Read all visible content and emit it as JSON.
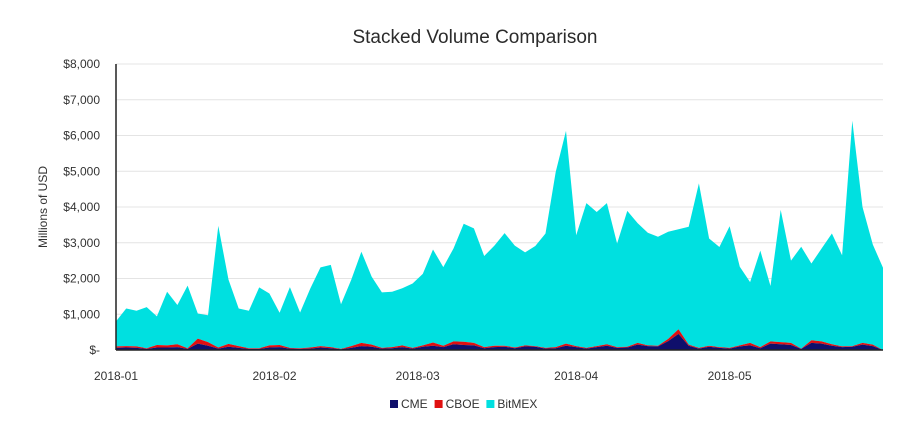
{
  "chart_data": {
    "type": "area",
    "stacked": true,
    "title": "Stacked Volume Comparison",
    "xlabel": "",
    "ylabel": "Millions of USD",
    "ylim": [
      0,
      8000
    ],
    "y_ticks": [
      0,
      1000,
      2000,
      3000,
      4000,
      5000,
      6000,
      7000,
      8000
    ],
    "y_tick_labels": [
      "$-",
      "$1,000",
      "$2,000",
      "$3,000",
      "$4,000",
      "$5,000",
      "$6,000",
      "$7,000",
      "$8,000"
    ],
    "x_tick_labels": [
      "2018-01",
      "2018-02",
      "2018-03",
      "2018-04",
      "2018-05"
    ],
    "x_tick_day_index": [
      0,
      31,
      59,
      90,
      120
    ],
    "x_range_days": [
      0,
      150
    ],
    "grid": true,
    "legend_position": "bottom",
    "x_day_index": [
      0,
      2,
      4,
      6,
      8,
      10,
      12,
      14,
      16,
      18,
      20,
      22,
      24,
      26,
      28,
      30,
      32,
      34,
      36,
      38,
      40,
      42,
      44,
      46,
      48,
      50,
      52,
      54,
      56,
      58,
      60,
      62,
      64,
      66,
      68,
      70,
      72,
      74,
      76,
      78,
      80,
      82,
      84,
      86,
      88,
      90,
      92,
      94,
      96,
      98,
      100,
      102,
      104,
      106,
      108,
      110,
      112,
      114,
      116,
      118,
      120,
      122,
      124,
      126,
      128,
      130,
      132,
      134,
      136,
      138,
      140,
      142,
      144,
      146,
      148,
      150
    ],
    "series": [
      {
        "name": "CME",
        "color": "#0f0f6b",
        "values": [
          60,
          70,
          60,
          30,
          70,
          70,
          80,
          30,
          180,
          120,
          40,
          90,
          60,
          30,
          30,
          70,
          80,
          40,
          30,
          40,
          70,
          50,
          20,
          60,
          110,
          90,
          40,
          50,
          80,
          40,
          90,
          120,
          80,
          160,
          140,
          130,
          50,
          80,
          90,
          50,
          100,
          90,
          40,
          50,
          120,
          80,
          40,
          80,
          120,
          60,
          70,
          150,
          110,
          100,
          250,
          450,
          120,
          40,
          90,
          60,
          40,
          100,
          130,
          50,
          180,
          160,
          140,
          30,
          200,
          180,
          120,
          80,
          90,
          150,
          110,
          0
        ]
      },
      {
        "name": "CBOE",
        "color": "#e01010",
        "values": [
          40,
          40,
          40,
          20,
          70,
          60,
          80,
          20,
          140,
          100,
          30,
          80,
          50,
          20,
          20,
          60,
          60,
          20,
          20,
          30,
          40,
          30,
          10,
          50,
          90,
          60,
          20,
          30,
          50,
          20,
          40,
          90,
          40,
          80,
          90,
          70,
          30,
          40,
          30,
          20,
          30,
          20,
          20,
          30,
          60,
          30,
          20,
          30,
          40,
          20,
          20,
          50,
          20,
          20,
          60,
          130,
          30,
          20,
          30,
          20,
          20,
          30,
          70,
          30,
          60,
          60,
          60,
          10,
          70,
          60,
          40,
          20,
          20,
          50,
          40,
          0
        ]
      },
      {
        "name": "BitMEX",
        "color": "#00e0e0",
        "values": [
          700,
          1050,
          1000,
          1150,
          800,
          1500,
          1100,
          1750,
          700,
          750,
          3400,
          1800,
          1050,
          1050,
          1700,
          1450,
          900,
          1700,
          1000,
          1650,
          2200,
          2300,
          1250,
          1850,
          2550,
          1900,
          1550,
          1550,
          1600,
          1800,
          2000,
          2600,
          2200,
          2600,
          3300,
          3200,
          2550,
          2800,
          3150,
          2850,
          2600,
          2800,
          3200,
          4900,
          5950,
          3100,
          4050,
          3750,
          3950,
          2900,
          3800,
          3350,
          3150,
          3050,
          3000,
          2800,
          3300,
          4600,
          3000,
          2800,
          3400,
          2200,
          1700,
          2700,
          1550,
          3700,
          2300,
          2850,
          2150,
          2600,
          3100,
          2550,
          6300,
          3800,
          2800,
          2300
        ]
      }
    ]
  },
  "legend": {
    "items": [
      {
        "label": "CME",
        "color": "#0f0f6b"
      },
      {
        "label": "CBOE",
        "color": "#e01010"
      },
      {
        "label": "BitMEX",
        "color": "#00e0e0"
      }
    ]
  }
}
